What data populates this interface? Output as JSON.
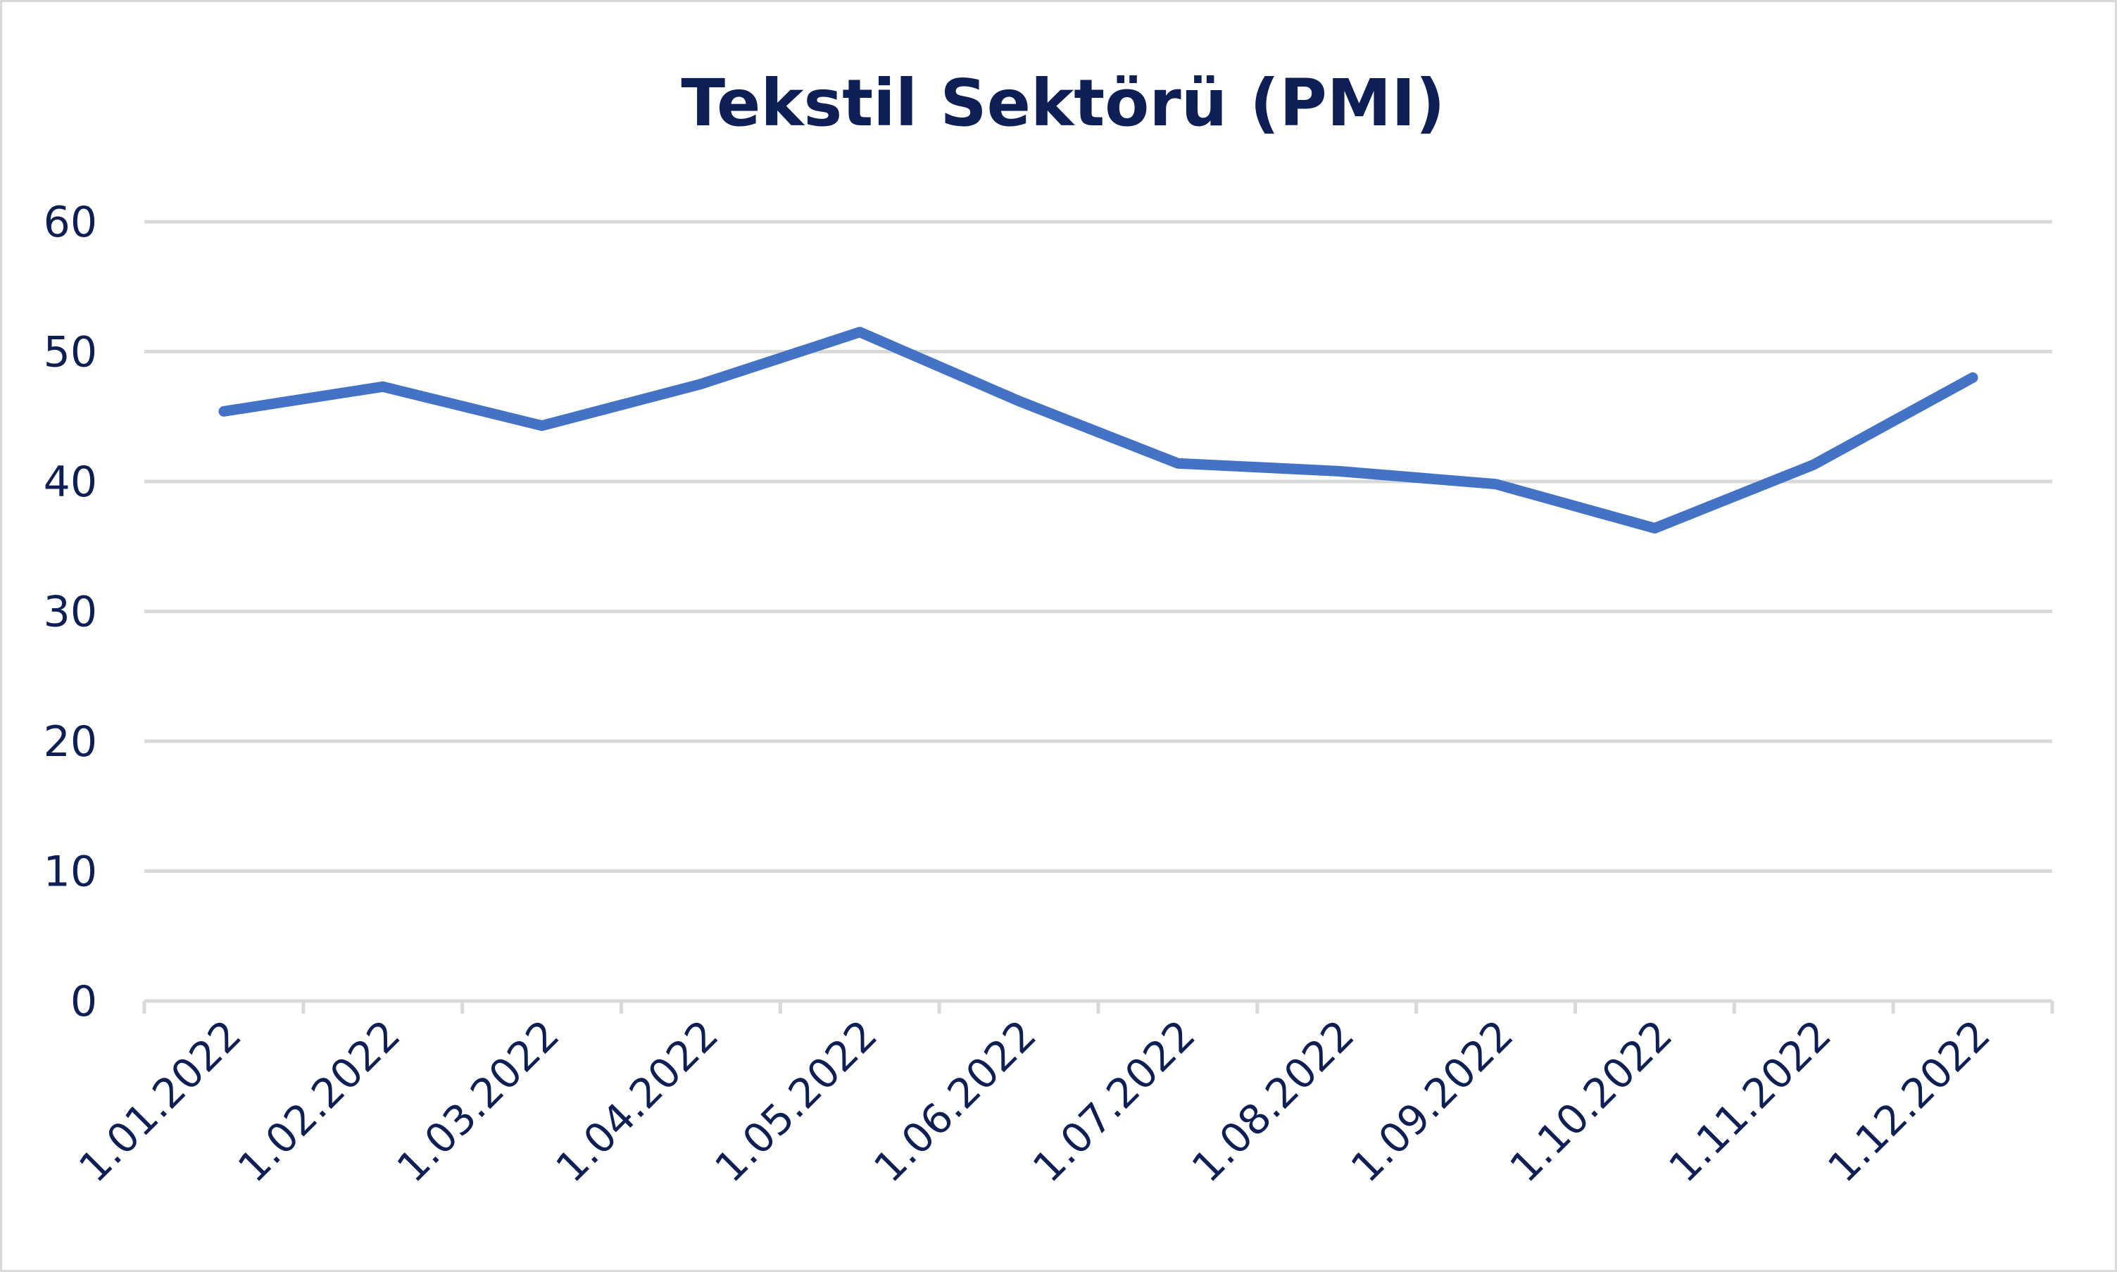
{
  "chart_data": {
    "type": "line",
    "title": "Tekstil Sektörü (PMI)",
    "xlabel": "",
    "ylabel": "",
    "categories": [
      "1.01.2022",
      "1.02.2022",
      "1.03.2022",
      "1.04.2022",
      "1.05.2022",
      "1.06.2022",
      "1.07.2022",
      "1.08.2022",
      "1.09.2022",
      "1.10.2022",
      "1.11.2022",
      "1.12.2022"
    ],
    "series": [
      {
        "values": [
          45.4,
          47.3,
          44.3,
          47.5,
          51.5,
          46.2,
          41.4,
          40.8,
          39.8,
          36.4,
          41.3,
          48.0
        ],
        "color": "#4472c4"
      }
    ],
    "ylim": [
      0,
      60
    ],
    "yticks": [
      "0",
      "10",
      "20",
      "30",
      "40",
      "50",
      "60"
    ],
    "grid": true,
    "legend": "none"
  },
  "colors": {
    "line": "#4472c4",
    "text": "#0d1f55",
    "grid": "#d9d9d9"
  }
}
